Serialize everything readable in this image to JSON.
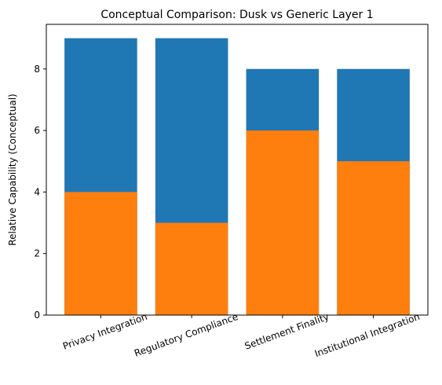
{
  "chart_data": {
    "type": "bar",
    "title": "Conceptual Comparison: Dusk vs Generic Layer 1",
    "xlabel": "",
    "ylabel": "Relative Capability (Conceptual)",
    "categories": [
      "Privacy Integration",
      "Regulatory Compliance",
      "Settlement Finality",
      "Institutional Integration"
    ],
    "series": [
      {
        "values": [
          9,
          9,
          8,
          8
        ],
        "color": "#1f77b4"
      },
      {
        "values": [
          4,
          3,
          6,
          5
        ],
        "color": "#ff7f0e"
      }
    ],
    "ylim": [
      0,
      9.45
    ],
    "yticks": [
      0,
      2,
      4,
      6,
      8
    ],
    "grid": false,
    "legend": "none",
    "xtick_rotation": -20
  }
}
